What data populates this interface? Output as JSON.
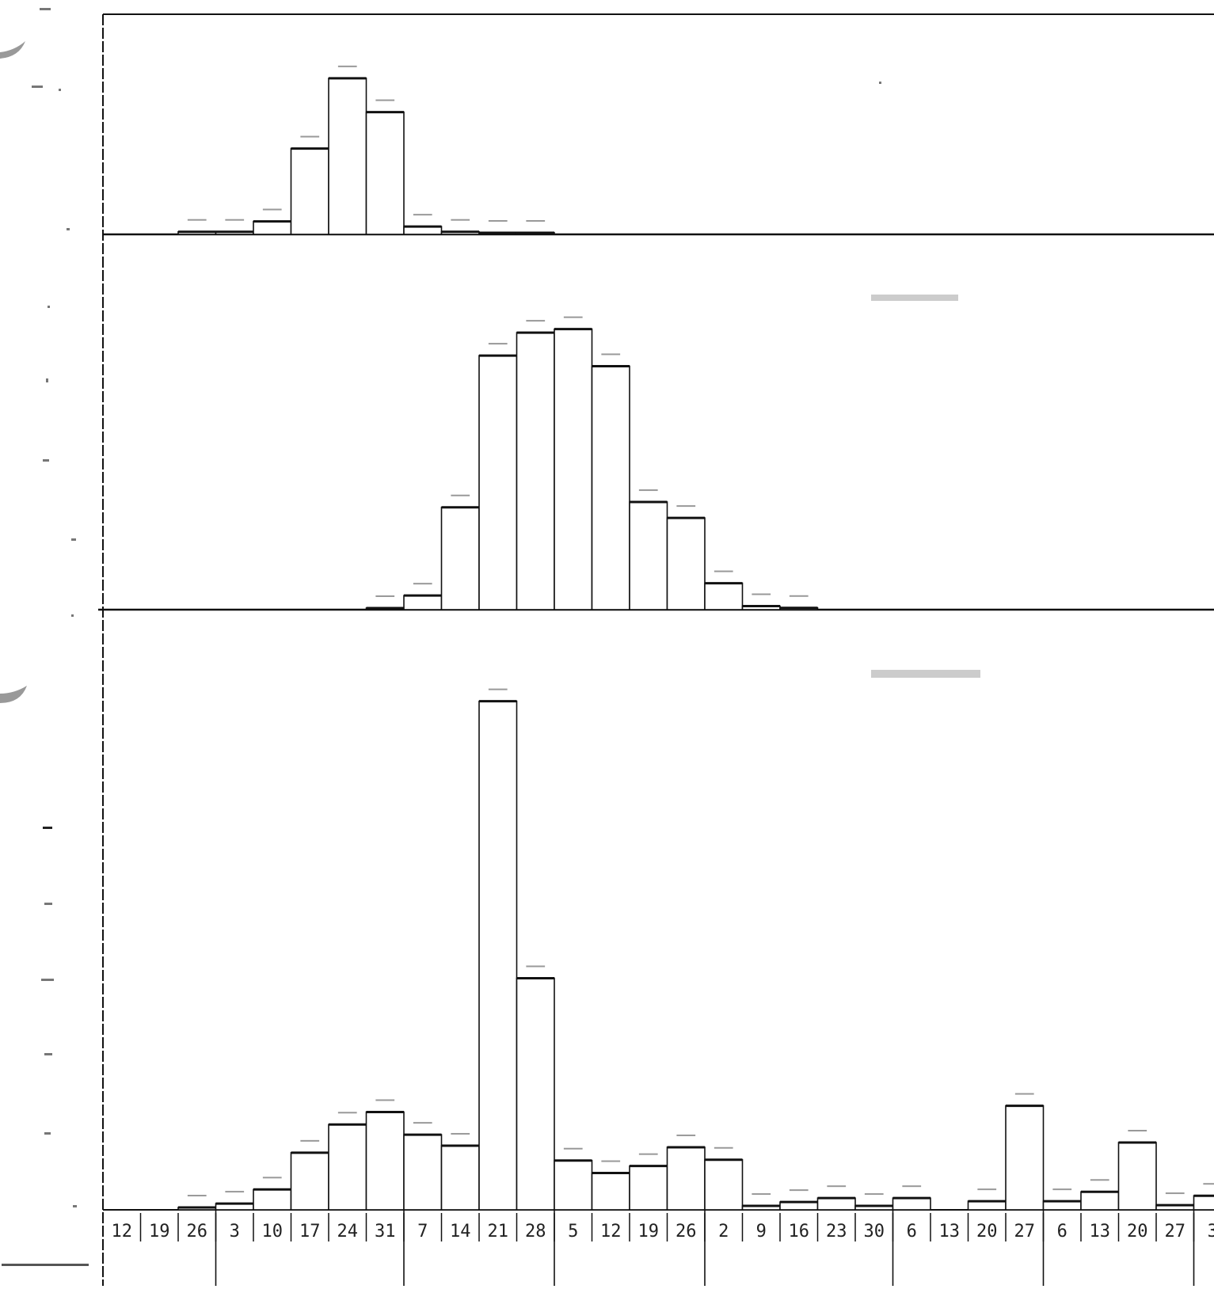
{
  "chart_data": [
    {
      "type": "bar",
      "panel": "top",
      "title": "",
      "xlabel": "",
      "ylabel": "",
      "values": [
        0,
        1,
        1,
        5,
        33,
        60,
        47,
        3,
        1,
        0.5,
        0.5
      ],
      "value_labels": [
        "",
        "",
        "",
        "",
        "",
        "",
        "",
        "",
        "",
        "",
        ""
      ],
      "ylim": [
        0,
        70
      ],
      "grid": false
    },
    {
      "type": "bar",
      "panel": "middle",
      "title": "",
      "xlabel": "",
      "ylabel": "",
      "values": [
        0,
        0,
        0,
        0,
        0.5,
        8,
        58,
        144,
        157,
        159,
        138,
        61,
        52,
        15,
        2,
        1
      ],
      "value_labels": [
        "",
        "",
        "",
        "",
        "",
        "",
        "",
        "",
        "",
        "",
        "",
        "",
        "",
        "",
        "",
        ""
      ],
      "ylim": [
        0,
        175
      ],
      "grid": false
    },
    {
      "type": "bar",
      "panel": "bottom",
      "title": "",
      "xlabel": "",
      "ylabel": "",
      "categories": [
        "12",
        "19",
        "26",
        "3",
        "10",
        "17",
        "24",
        "31",
        "7",
        "14",
        "21",
        "28",
        "5",
        "12",
        "19",
        "26",
        "2",
        "9",
        "16",
        "23",
        "30",
        "6",
        "13",
        "20",
        "27",
        "6",
        "13",
        "20",
        "27",
        "3"
      ],
      "values": [
        0,
        0,
        3,
        8,
        26,
        73,
        109,
        125,
        96,
        82,
        650,
        296,
        63,
        47,
        56,
        80,
        64,
        5,
        10,
        15,
        5,
        15,
        0,
        11,
        133,
        11,
        23,
        86,
        6,
        18
      ],
      "value_labels": [
        "",
        "",
        "",
        "",
        "",
        "",
        "",
        "",
        "",
        "",
        "",
        "",
        "",
        "",
        "",
        "",
        "",
        "",
        "",
        "",
        "",
        "",
        "",
        "",
        "",
        "",
        "",
        "",
        "",
        ""
      ],
      "ylim": [
        0,
        680
      ],
      "grid": false
    }
  ],
  "colors": {
    "bar_fill": "#ffffff",
    "bar_stroke": "#111111",
    "axis": "#111111",
    "faint_text": "#999999"
  }
}
